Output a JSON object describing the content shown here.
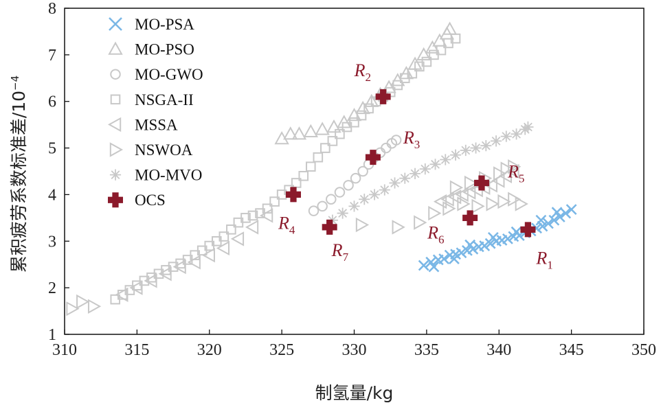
{
  "chart_data": {
    "type": "scatter",
    "xlabel": "制氢量/kg",
    "ylabel": "累积疲劳系数标准差/10",
    "ylabel_exponent": "−4",
    "xlim": [
      310,
      350
    ],
    "ylim": [
      1,
      8
    ],
    "xticks": [
      310,
      315,
      320,
      325,
      330,
      335,
      340,
      345,
      350
    ],
    "yticks": [
      1,
      2,
      3,
      4,
      5,
      6,
      7,
      8
    ],
    "grid": false,
    "legend_position": "top-left",
    "colors": {
      "gray": "#c8c8c8",
      "blue": "#7ab7e6",
      "red": "#8b1a2b"
    },
    "series": [
      {
        "name": "MO-PSA",
        "marker": "x",
        "color": "#7ab7e6",
        "points": [
          [
            334.8,
            2.48
          ],
          [
            335.3,
            2.55
          ],
          [
            335.8,
            2.6
          ],
          [
            336.2,
            2.62
          ],
          [
            336.6,
            2.7
          ],
          [
            337.0,
            2.72
          ],
          [
            337.4,
            2.75
          ],
          [
            337.8,
            2.8
          ],
          [
            338.2,
            2.83
          ],
          [
            338.6,
            2.88
          ],
          [
            339.0,
            2.9
          ],
          [
            339.4,
            2.95
          ],
          [
            339.8,
            3.0
          ],
          [
            340.2,
            3.02
          ],
          [
            340.6,
            3.05
          ],
          [
            341.0,
            3.1
          ],
          [
            341.4,
            3.12
          ],
          [
            341.8,
            3.18
          ],
          [
            342.2,
            3.22
          ],
          [
            342.6,
            3.28
          ],
          [
            343.0,
            3.32
          ],
          [
            343.4,
            3.38
          ],
          [
            343.8,
            3.45
          ],
          [
            344.2,
            3.52
          ],
          [
            344.6,
            3.6
          ],
          [
            345.0,
            3.68
          ],
          [
            335.5,
            2.45
          ],
          [
            336.9,
            2.62
          ],
          [
            338.0,
            2.92
          ],
          [
            339.6,
            3.08
          ],
          [
            341.2,
            3.2
          ],
          [
            342.9,
            3.45
          ],
          [
            344.0,
            3.62
          ]
        ]
      },
      {
        "name": "MO-PSO",
        "marker": "triangle-up",
        "color": "#c8c8c8",
        "points": [
          [
            325.0,
            5.2
          ],
          [
            325.6,
            5.3
          ],
          [
            326.2,
            5.3
          ],
          [
            327.0,
            5.35
          ],
          [
            327.8,
            5.4
          ],
          [
            328.6,
            5.45
          ],
          [
            329.3,
            5.55
          ],
          [
            330.0,
            5.7
          ],
          [
            330.6,
            5.85
          ],
          [
            331.2,
            6.0
          ],
          [
            331.8,
            6.15
          ],
          [
            332.4,
            6.3
          ],
          [
            333.0,
            6.45
          ],
          [
            333.6,
            6.6
          ],
          [
            334.2,
            6.8
          ],
          [
            334.8,
            7.0
          ],
          [
            335.4,
            7.15
          ],
          [
            335.9,
            7.3
          ],
          [
            336.4,
            7.45
          ],
          [
            336.6,
            7.55
          ]
        ]
      },
      {
        "name": "MO-GWO",
        "marker": "circle",
        "color": "#c8c8c8",
        "points": [
          [
            327.2,
            3.65
          ],
          [
            327.8,
            3.75
          ],
          [
            328.4,
            3.9
          ],
          [
            329.0,
            4.05
          ],
          [
            329.6,
            4.2
          ],
          [
            330.1,
            4.35
          ],
          [
            330.6,
            4.5
          ],
          [
            331.0,
            4.65
          ],
          [
            331.4,
            4.8
          ],
          [
            331.8,
            4.9
          ],
          [
            332.2,
            5.0
          ],
          [
            332.6,
            5.1
          ],
          [
            332.9,
            5.17
          ]
        ]
      },
      {
        "name": "NSGA-II",
        "marker": "square",
        "color": "#c8c8c8",
        "points": [
          [
            313.5,
            1.75
          ],
          [
            314.0,
            1.85
          ],
          [
            314.5,
            1.95
          ],
          [
            315.0,
            2.05
          ],
          [
            315.5,
            2.15
          ],
          [
            316.0,
            2.22
          ],
          [
            316.5,
            2.3
          ],
          [
            317.0,
            2.38
          ],
          [
            317.5,
            2.45
          ],
          [
            318.0,
            2.52
          ],
          [
            318.5,
            2.6
          ],
          [
            319.0,
            2.7
          ],
          [
            319.5,
            2.8
          ],
          [
            320.0,
            2.9
          ],
          [
            320.5,
            3.0
          ],
          [
            321.0,
            3.1
          ],
          [
            321.5,
            3.25
          ],
          [
            322.0,
            3.4
          ],
          [
            322.5,
            3.5
          ],
          [
            323.0,
            3.55
          ],
          [
            323.5,
            3.6
          ],
          [
            324.0,
            3.7
          ],
          [
            324.5,
            3.85
          ],
          [
            325.0,
            4.0
          ],
          [
            325.5,
            4.1
          ],
          [
            326.0,
            4.25
          ],
          [
            326.5,
            4.4
          ],
          [
            327.0,
            4.6
          ],
          [
            327.5,
            4.8
          ],
          [
            328.0,
            5.0
          ],
          [
            328.5,
            5.15
          ],
          [
            329.0,
            5.3
          ],
          [
            329.5,
            5.45
          ],
          [
            330.0,
            5.55
          ],
          [
            330.5,
            5.7
          ],
          [
            331.0,
            5.85
          ],
          [
            331.5,
            6.0
          ],
          [
            332.0,
            6.1
          ],
          [
            332.5,
            6.2
          ],
          [
            333.0,
            6.35
          ],
          [
            333.5,
            6.5
          ],
          [
            334.0,
            6.6
          ],
          [
            334.5,
            6.75
          ],
          [
            335.0,
            6.85
          ],
          [
            335.5,
            7.0
          ],
          [
            336.0,
            7.1
          ],
          [
            336.5,
            7.25
          ],
          [
            337.0,
            7.35
          ]
        ]
      },
      {
        "name": "MSSA",
        "marker": "triangle-left",
        "color": "#c8c8c8",
        "points": [
          [
            314.0,
            1.85
          ],
          [
            315.0,
            2.0
          ],
          [
            316.0,
            2.15
          ],
          [
            317.0,
            2.3
          ],
          [
            318.0,
            2.45
          ],
          [
            319.0,
            2.55
          ],
          [
            320.0,
            2.7
          ],
          [
            321.0,
            2.85
          ],
          [
            322.0,
            3.05
          ],
          [
            323.0,
            3.3
          ],
          [
            324.0,
            3.55
          ],
          [
            336.0,
            3.85
          ],
          [
            336.5,
            3.9
          ],
          [
            337.0,
            3.95
          ],
          [
            337.5,
            4.0
          ],
          [
            338.0,
            4.05
          ],
          [
            338.5,
            4.1
          ],
          [
            339.0,
            4.15
          ],
          [
            339.5,
            4.2
          ],
          [
            340.0,
            4.3
          ],
          [
            340.5,
            4.4
          ],
          [
            341.0,
            4.5
          ]
        ]
      },
      {
        "name": "NSWOA",
        "marker": "triangle-right",
        "color": "#c8c8c8",
        "points": [
          [
            310.5,
            1.55
          ],
          [
            311.2,
            1.7
          ],
          [
            312.0,
            1.6
          ],
          [
            330.5,
            3.35
          ],
          [
            333.0,
            3.3
          ],
          [
            334.5,
            3.4
          ],
          [
            335.5,
            3.6
          ],
          [
            336.5,
            3.7
          ],
          [
            337.5,
            3.8
          ],
          [
            338.5,
            3.75
          ],
          [
            339.5,
            3.8
          ],
          [
            340.3,
            3.85
          ],
          [
            341.0,
            3.9
          ],
          [
            341.5,
            3.8
          ],
          [
            337.0,
            4.15
          ],
          [
            338.0,
            4.25
          ],
          [
            339.0,
            4.35
          ],
          [
            340.0,
            4.45
          ],
          [
            340.5,
            4.55
          ],
          [
            341.0,
            4.6
          ]
        ]
      },
      {
        "name": "MO-MVO",
        "marker": "asterisk",
        "color": "#c8c8c8",
        "points": [
          [
            328.5,
            3.45
          ],
          [
            329.2,
            3.6
          ],
          [
            330.0,
            3.75
          ],
          [
            330.7,
            3.9
          ],
          [
            331.4,
            4.0
          ],
          [
            332.1,
            4.1
          ],
          [
            332.8,
            4.25
          ],
          [
            333.5,
            4.35
          ],
          [
            334.2,
            4.45
          ],
          [
            334.9,
            4.55
          ],
          [
            335.6,
            4.65
          ],
          [
            336.3,
            4.75
          ],
          [
            337.0,
            4.85
          ],
          [
            337.7,
            4.95
          ],
          [
            338.4,
            5.0
          ],
          [
            339.1,
            5.05
          ],
          [
            339.8,
            5.15
          ],
          [
            340.5,
            5.25
          ],
          [
            341.2,
            5.3
          ],
          [
            341.8,
            5.4
          ],
          [
            342.0,
            5.45
          ]
        ]
      },
      {
        "name": "OCS",
        "marker": "cross",
        "color": "#8b1a2b",
        "points": [
          [
            342.0,
            3.25
          ],
          [
            332.0,
            6.1
          ],
          [
            331.3,
            4.8
          ],
          [
            325.8,
            4.0
          ],
          [
            338.8,
            4.25
          ],
          [
            338.0,
            3.5
          ],
          [
            328.3,
            3.3
          ]
        ]
      }
    ],
    "annotations": [
      {
        "base": "R",
        "sub": "1",
        "x": 342.0,
        "y": 3.25
      },
      {
        "base": "R",
        "sub": "2",
        "x": 332.0,
        "y": 6.1
      },
      {
        "base": "R",
        "sub": "3",
        "x": 331.3,
        "y": 4.8
      },
      {
        "base": "R",
        "sub": "4",
        "x": 325.8,
        "y": 4.0
      },
      {
        "base": "R",
        "sub": "5",
        "x": 338.8,
        "y": 4.25
      },
      {
        "base": "R",
        "sub": "6",
        "x": 338.0,
        "y": 3.5
      },
      {
        "base": "R",
        "sub": "7",
        "x": 328.3,
        "y": 3.3
      }
    ]
  }
}
